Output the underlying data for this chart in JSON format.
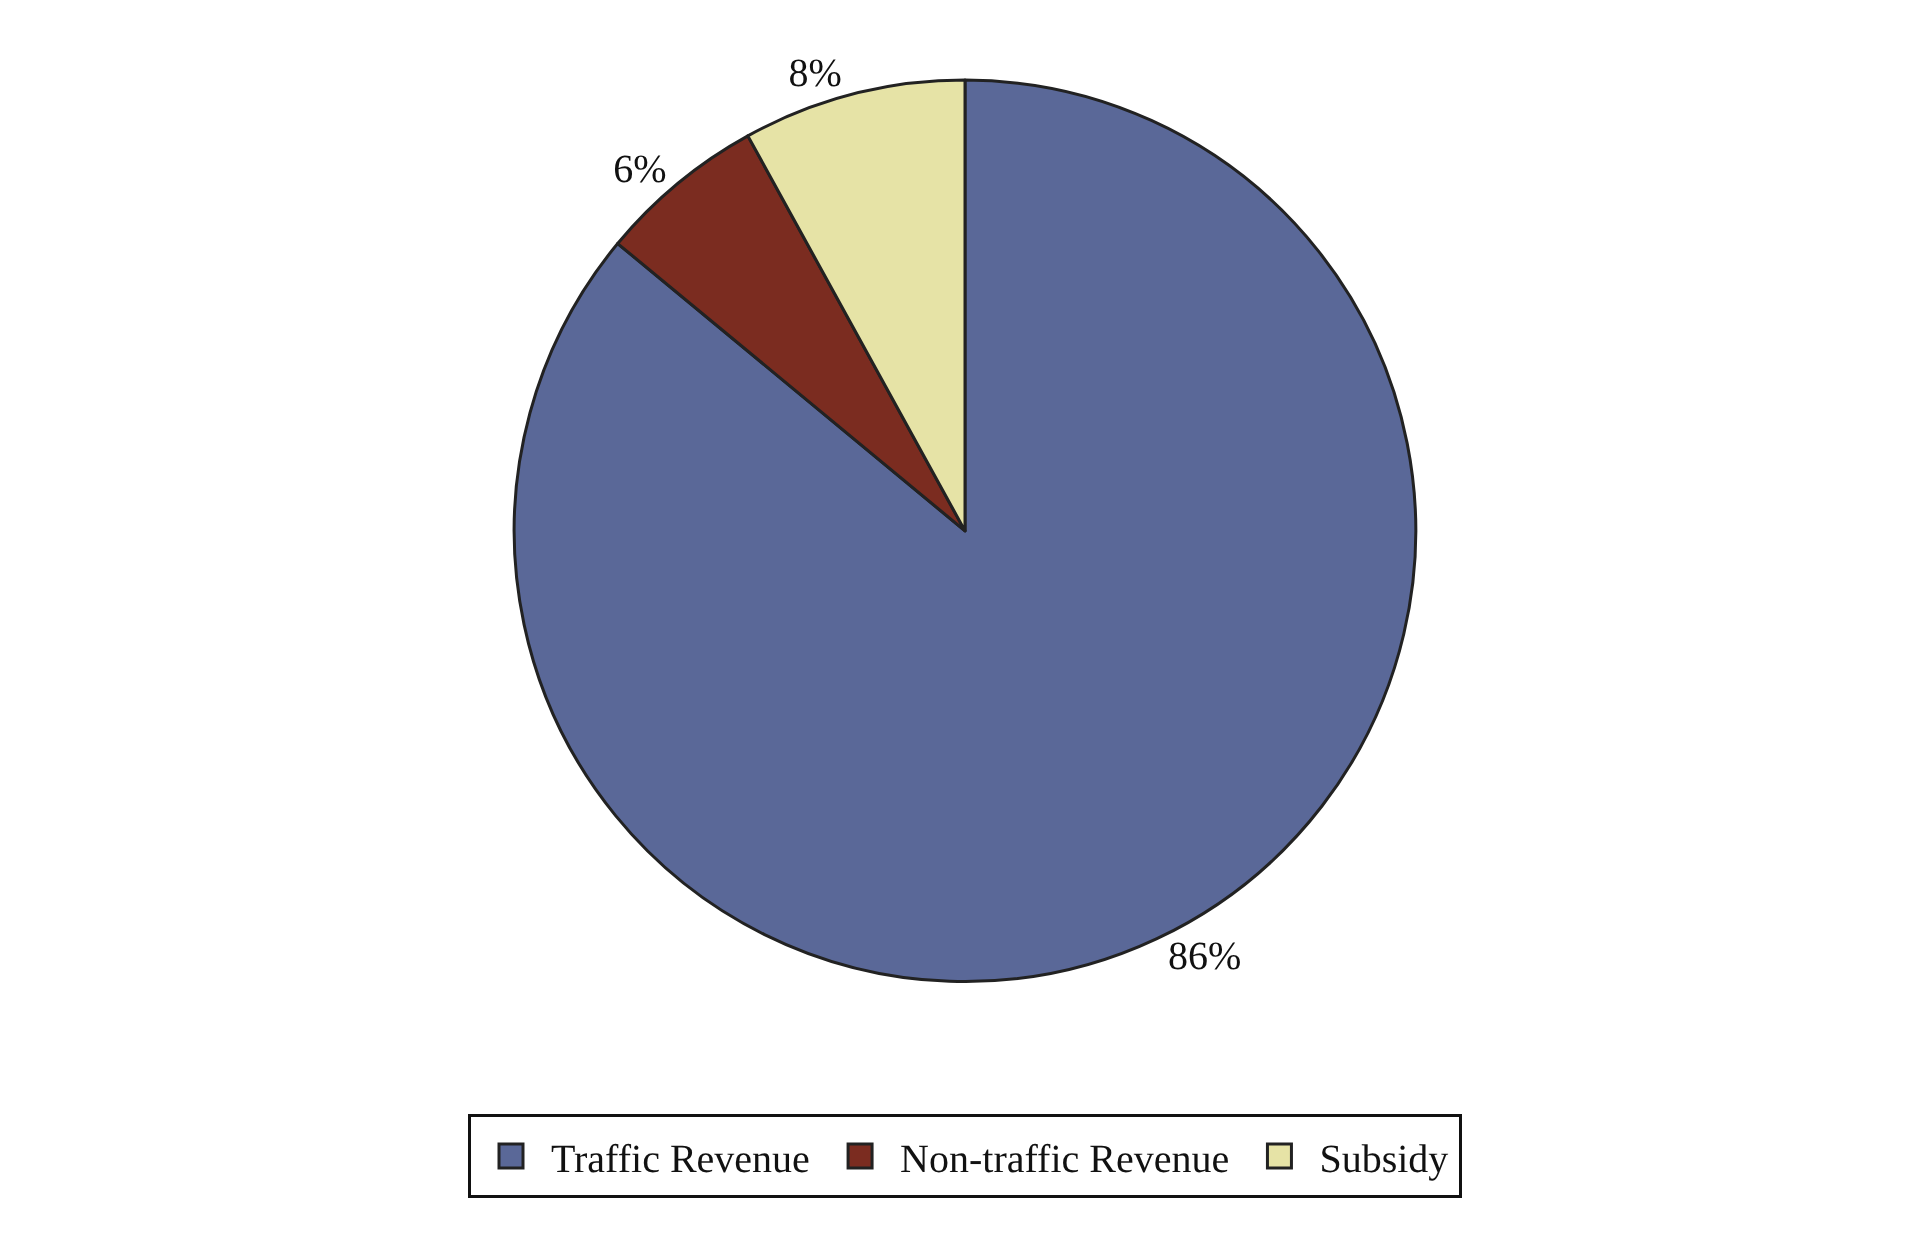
{
  "chart_data": {
    "type": "pie",
    "categories": [
      "Traffic Revenue",
      "Non-traffic Revenue",
      "Subsidy"
    ],
    "values": [
      86,
      6,
      8
    ],
    "colors": [
      "#5a6898",
      "#7b2c20",
      "#e6e3a6"
    ],
    "value_labels": [
      "86%",
      "6%",
      "8%"
    ],
    "legend": "bottom"
  }
}
